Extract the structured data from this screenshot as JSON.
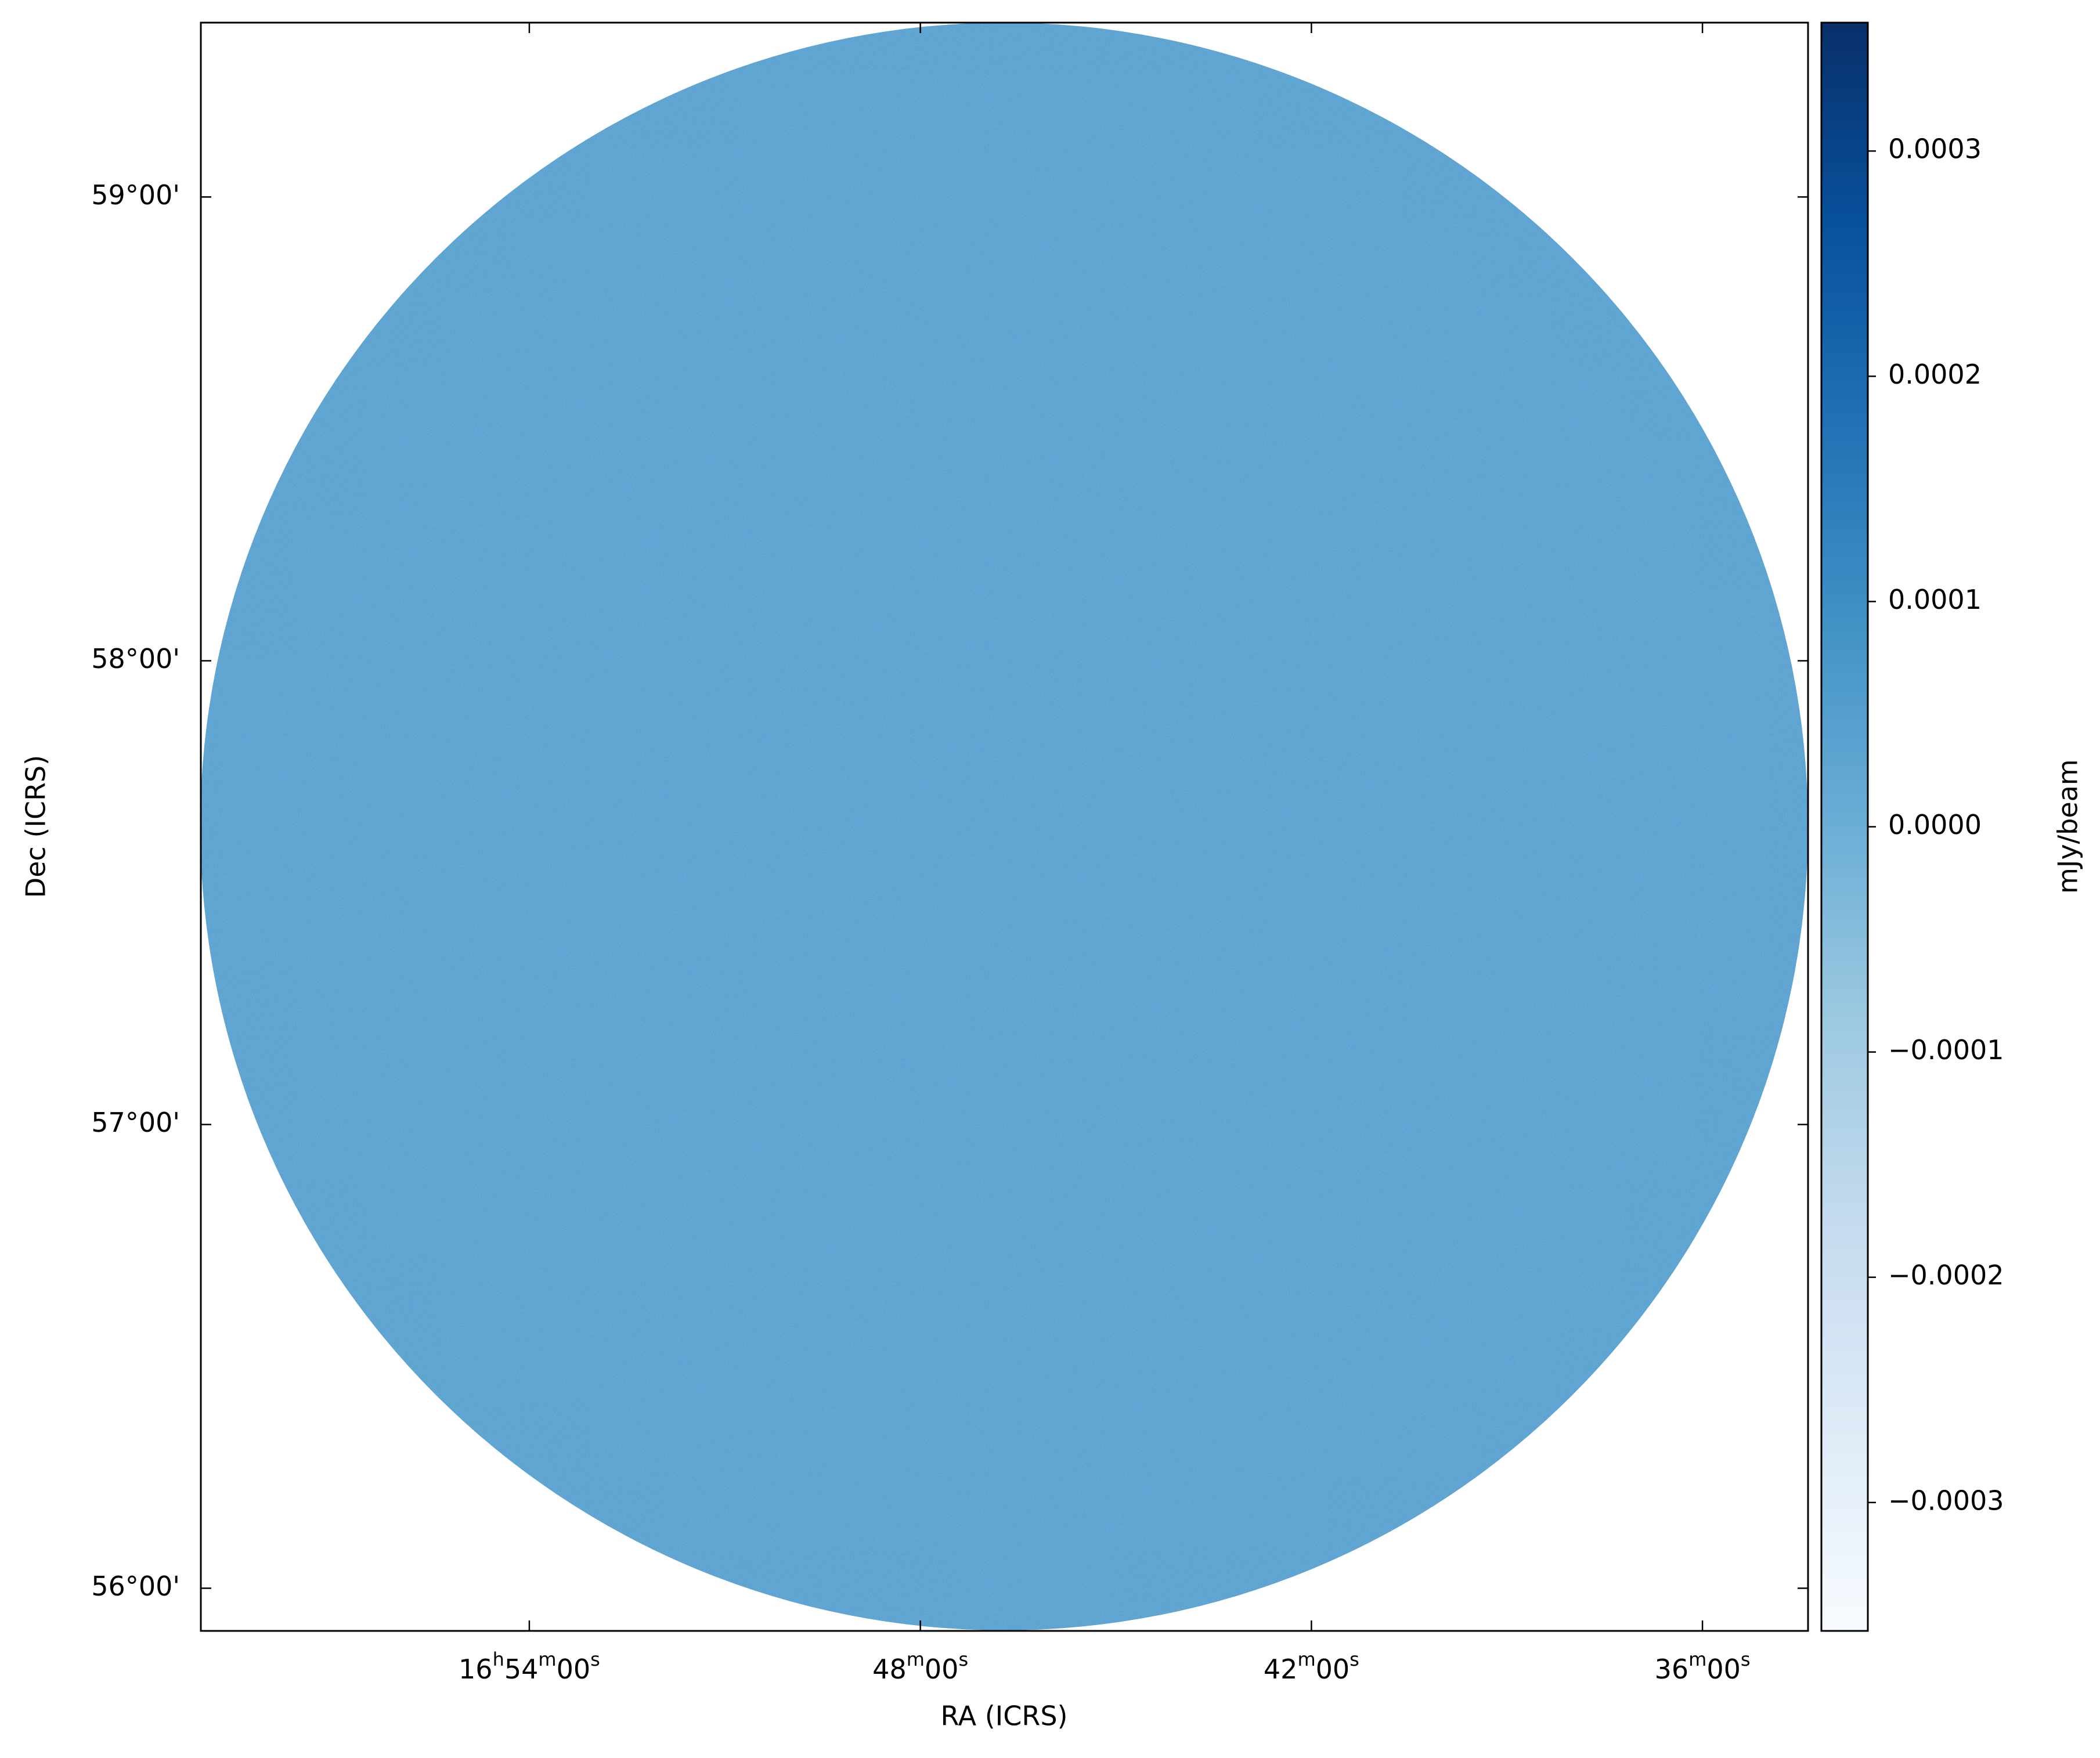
{
  "chart_data": {
    "type": "image",
    "xlabel": "RA (ICRS)",
    "ylabel": "Dec (ICRS)",
    "xlim": [
      16.984,
      16.573
    ],
    "xticks": [
      {
        "value": 16.9,
        "label": "16h54m00s"
      },
      {
        "value": 16.8,
        "label": "48m00s"
      },
      {
        "value": 16.7,
        "label": "42m00s"
      },
      {
        "value": 16.6,
        "label": "36m00s"
      }
    ],
    "ylim": [
      55.908,
      59.376
    ],
    "yticks": [
      {
        "value": 59,
        "label": "59°00'"
      },
      {
        "value": 58,
        "label": "58°00'"
      },
      {
        "value": 57,
        "label": "57°00'"
      },
      {
        "value": 56,
        "label": "56°00'"
      }
    ],
    "colormap": "Blues",
    "colorbar_label": "mJy/beam",
    "clim": [
      -0.000357,
      0.000357
    ],
    "cticks": [
      0.0003,
      0.0002,
      0.0001,
      {
        "value": 0,
        "label": "0.0000"
      },
      {
        "value": -0.0001,
        "label": "−0.0001"
      },
      {
        "value": -0.0002,
        "label": "−0.0002"
      },
      {
        "value": -0.0003,
        "label": "−0.0003"
      }
    ]
  }
}
